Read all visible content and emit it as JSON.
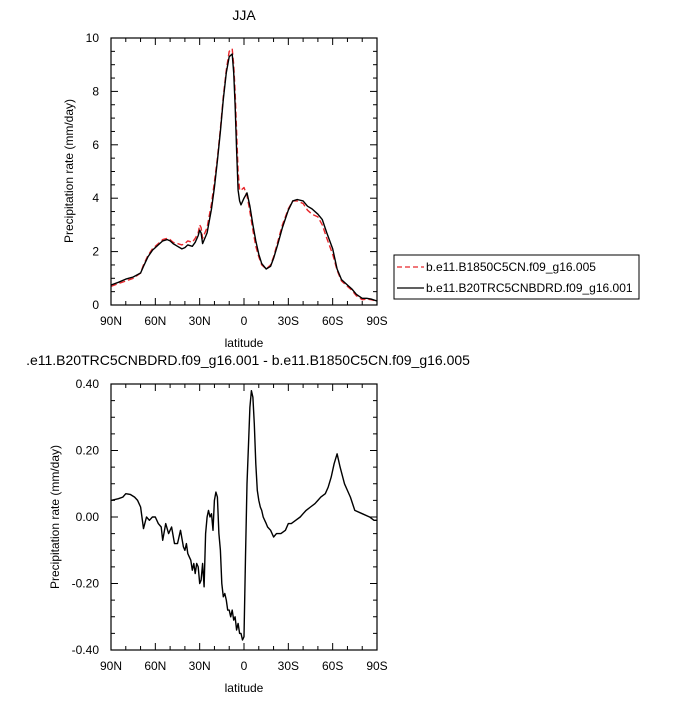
{
  "chart_data": [
    {
      "type": "line",
      "title": "JJA",
      "xlabel": "latitude",
      "ylabel": "Precipitation rate (mm/day)",
      "xlim": [
        90,
        -90
      ],
      "ylim": [
        0,
        10
      ],
      "x_ticks": [
        90,
        60,
        30,
        0,
        -30,
        -60,
        -90
      ],
      "x_tick_labels": [
        "90N",
        "60N",
        "30N",
        "0",
        "30S",
        "60S",
        "90S"
      ],
      "y_ticks": [
        0,
        2,
        4,
        6,
        8,
        10
      ],
      "y_tick_labels": [
        "0",
        "2",
        "4",
        "6",
        "8",
        "10"
      ],
      "legend_position": "right",
      "series": [
        {
          "name": "b.e11.B1850C5CN.f09_g16.005",
          "color": "#e8262b",
          "style": "dashed",
          "x": [
            90,
            85,
            80,
            75,
            70,
            68,
            65,
            62,
            60,
            58,
            55,
            52,
            50,
            48,
            45,
            42,
            40,
            38,
            35,
            33,
            31,
            30,
            29,
            28,
            25,
            22,
            20,
            18,
            16,
            14,
            12,
            10,
            8,
            7,
            6,
            5,
            4,
            3,
            2,
            0,
            -2,
            -4,
            -6,
            -8,
            -10,
            -12,
            -15,
            -18,
            -20,
            -23,
            -26,
            -30,
            -33,
            -36,
            -40,
            -43,
            -46,
            -50,
            -53,
            -56,
            -60,
            -63,
            -66,
            -70,
            -73,
            -76,
            -80,
            -83,
            -86,
            -90
          ],
          "values": [
            0.7,
            0.8,
            0.9,
            1.0,
            1.2,
            1.5,
            1.85,
            2.1,
            2.2,
            2.3,
            2.45,
            2.5,
            2.45,
            2.35,
            2.3,
            2.25,
            2.3,
            2.4,
            2.35,
            2.5,
            2.7,
            3.0,
            2.9,
            2.5,
            2.9,
            3.8,
            4.6,
            5.5,
            6.6,
            7.8,
            8.8,
            9.5,
            9.6,
            9.0,
            8.0,
            6.5,
            5.0,
            4.3,
            4.3,
            4.4,
            4.1,
            3.5,
            2.8,
            2.2,
            1.8,
            1.5,
            1.35,
            1.5,
            1.8,
            2.4,
            3.0,
            3.6,
            3.9,
            3.9,
            3.8,
            3.55,
            3.4,
            3.3,
            3.0,
            2.5,
            1.9,
            1.3,
            0.9,
            0.7,
            0.55,
            0.35,
            0.2,
            0.22,
            0.2,
            0.15
          ]
        },
        {
          "name": "b.e11.B20TRC5CNBDRD.f09_g16.001",
          "color": "#000000",
          "style": "solid",
          "x": [
            90,
            85,
            80,
            75,
            70,
            68,
            65,
            62,
            60,
            58,
            55,
            52,
            50,
            48,
            45,
            42,
            40,
            38,
            35,
            33,
            31,
            30,
            29,
            28,
            25,
            22,
            20,
            18,
            16,
            14,
            12,
            10,
            8,
            7,
            6,
            5,
            4,
            3,
            2,
            0,
            -2,
            -4,
            -6,
            -8,
            -10,
            -12,
            -15,
            -18,
            -20,
            -23,
            -26,
            -30,
            -33,
            -36,
            -40,
            -43,
            -46,
            -50,
            -53,
            -56,
            -60,
            -63,
            -66,
            -70,
            -73,
            -76,
            -80,
            -83,
            -86,
            -90
          ],
          "values": [
            0.75,
            0.85,
            0.97,
            1.05,
            1.2,
            1.45,
            1.8,
            2.05,
            2.15,
            2.25,
            2.4,
            2.45,
            2.4,
            2.3,
            2.2,
            2.1,
            2.15,
            2.25,
            2.2,
            2.35,
            2.6,
            2.8,
            2.7,
            2.3,
            2.7,
            3.6,
            4.4,
            5.4,
            6.5,
            7.7,
            8.7,
            9.3,
            9.4,
            8.7,
            7.5,
            5.8,
            4.3,
            3.9,
            3.75,
            4.0,
            4.2,
            3.7,
            3.0,
            2.4,
            1.9,
            1.55,
            1.35,
            1.45,
            1.75,
            2.3,
            2.9,
            3.55,
            3.9,
            3.95,
            3.9,
            3.7,
            3.6,
            3.4,
            3.2,
            2.7,
            2.1,
            1.35,
            0.95,
            0.75,
            0.6,
            0.4,
            0.25,
            0.25,
            0.22,
            0.15
          ]
        }
      ]
    },
    {
      "type": "line",
      "title": ".e11.B20TRC5CNBDRD.f09_g16.001 - b.e11.B1850C5CN.f09_g16.005",
      "xlabel": "latitude",
      "ylabel": "Precipitation rate (mm/day)",
      "xlim": [
        90,
        -90
      ],
      "ylim": [
        -0.4,
        0.4
      ],
      "x_ticks": [
        90,
        60,
        30,
        0,
        -30,
        -60,
        -90
      ],
      "x_tick_labels": [
        "90N",
        "60N",
        "30N",
        "0",
        "30S",
        "60S",
        "90S"
      ],
      "y_ticks": [
        -0.4,
        -0.2,
        0,
        0.2,
        0.4
      ],
      "y_tick_labels": [
        "-0.40",
        "-0.20",
        "0.00",
        "0.20",
        "0.40"
      ],
      "series": [
        {
          "color": "#000000",
          "style": "solid",
          "x": [
            90,
            85,
            82,
            80,
            77,
            74,
            72,
            70,
            68,
            66,
            64,
            62,
            60,
            58,
            56,
            55,
            53,
            51,
            49,
            47,
            45,
            43,
            41,
            40,
            39,
            38,
            37,
            36,
            35,
            34,
            33,
            32,
            31,
            30,
            29,
            28,
            27,
            26,
            25,
            24,
            23,
            22,
            21,
            20,
            19,
            18,
            17,
            16,
            15,
            14,
            13,
            12,
            11,
            10,
            9,
            8,
            7,
            6,
            5,
            4,
            3,
            2,
            1,
            0,
            -1,
            -2,
            -3,
            -4,
            -5,
            -6,
            -7,
            -8,
            -9,
            -10,
            -11,
            -12,
            -13,
            -14,
            -15,
            -16,
            -18,
            -20,
            -22,
            -25,
            -28,
            -30,
            -32,
            -35,
            -38,
            -40,
            -42,
            -45,
            -48,
            -50,
            -52,
            -55,
            -57,
            -59,
            -61,
            -63,
            -65,
            -68,
            -70,
            -72,
            -75,
            -80,
            -85,
            -88,
            -90
          ],
          "values": [
            0.05,
            0.055,
            0.06,
            0.07,
            0.068,
            0.06,
            0.05,
            0.03,
            -0.035,
            0.0,
            -0.01,
            0.0,
            0.0,
            -0.02,
            -0.03,
            -0.07,
            -0.02,
            -0.05,
            -0.03,
            -0.08,
            -0.08,
            -0.04,
            -0.09,
            -0.1,
            -0.08,
            -0.11,
            -0.12,
            -0.13,
            -0.16,
            -0.14,
            -0.17,
            -0.14,
            -0.15,
            -0.2,
            -0.19,
            -0.14,
            -0.21,
            -0.05,
            -0.0,
            0.02,
            0.0,
            0.01,
            -0.04,
            0.05,
            0.075,
            0.06,
            -0.05,
            -0.1,
            -0.2,
            -0.24,
            -0.23,
            -0.25,
            -0.28,
            -0.28,
            -0.3,
            -0.28,
            -0.31,
            -0.3,
            -0.34,
            -0.32,
            -0.35,
            -0.35,
            -0.37,
            -0.36,
            -0.12,
            0.1,
            0.21,
            0.33,
            0.38,
            0.36,
            0.28,
            0.16,
            0.08,
            0.05,
            0.03,
            0.02,
            0.0,
            -0.01,
            -0.02,
            -0.03,
            -0.04,
            -0.06,
            -0.05,
            -0.05,
            -0.04,
            -0.02,
            -0.02,
            -0.01,
            0.0,
            0.01,
            0.02,
            0.03,
            0.04,
            0.05,
            0.06,
            0.07,
            0.09,
            0.12,
            0.16,
            0.19,
            0.15,
            0.1,
            0.08,
            0.06,
            0.02,
            0.01,
            0.0,
            -0.01,
            -0.01
          ]
        }
      ]
    }
  ]
}
